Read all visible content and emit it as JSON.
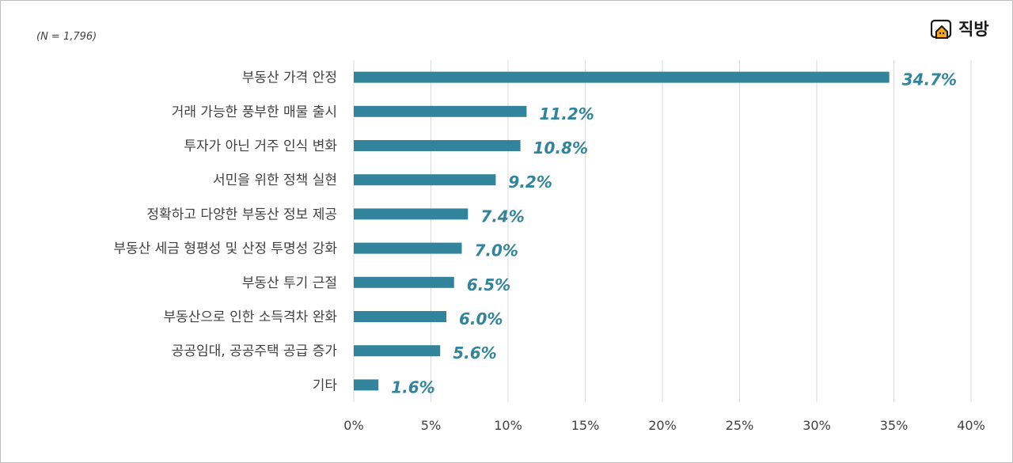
{
  "note": "(N = 1,796)",
  "logo": {
    "text": "직방",
    "icon": "house-logo-icon",
    "icon_color": "#f5a623"
  },
  "chart_data": {
    "type": "bar",
    "orientation": "horizontal",
    "categories": [
      "부동산 가격 안정",
      "거래 가능한 풍부한 매물 출시",
      "투자가 아닌 거주 인식 변화",
      "서민을 위한 정책 실현",
      "정확하고 다양한 부동산 정보 제공",
      "부동산 세금 형평성 및 산정 투명성 강화",
      "부동산 투기 근절",
      "부동산으로 인한 소득격차 완화",
      "공공임대, 공공주택 공급 증가",
      "기타"
    ],
    "values": [
      34.7,
      11.2,
      10.8,
      9.2,
      7.4,
      7.0,
      6.5,
      6.0,
      5.6,
      1.6
    ],
    "value_labels": [
      "34.7%",
      "11.2%",
      "10.8%",
      "9.2%",
      "7.4%",
      "7.0%",
      "6.5%",
      "6.0%",
      "5.6%",
      "1.6%"
    ],
    "x_ticks": [
      "0%",
      "5%",
      "10%",
      "15%",
      "20%",
      "25%",
      "30%",
      "35%",
      "40%"
    ],
    "xlim": [
      0,
      40
    ],
    "grid": "vertical",
    "legend": "none",
    "bar_color": "#31849b",
    "label_color": "#31849b",
    "grid_color": "#d9d9d9"
  }
}
